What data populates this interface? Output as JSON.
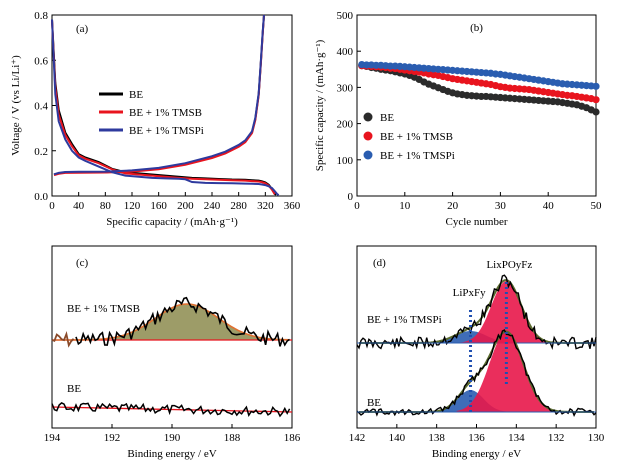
{
  "chart_data": [
    {
      "panel": "(a)",
      "type": "line",
      "xlabel": "Specific capacity / (mAh·g⁻¹)",
      "ylabel": "Voltage / V (vs Li/Li⁺)",
      "xlim": [
        0,
        360
      ],
      "ylim": [
        0,
        0.8
      ],
      "xticks": [
        0,
        40,
        80,
        120,
        160,
        200,
        240,
        280,
        320,
        360
      ],
      "yticks": [
        0.0,
        0.2,
        0.4,
        0.6,
        0.8
      ],
      "legend_position": "center-left",
      "series": [
        {
          "name": "BE",
          "color": "#000000",
          "discharge": {
            "x": [
              0,
              5,
              10,
              20,
              30,
              40,
              50,
              70,
              90,
              110,
              130,
              150,
              170,
              190,
              210,
              230,
              250,
              270,
              290,
              300,
              310,
              315,
              320,
              325,
              330,
              332,
              334,
              336
            ],
            "y": [
              0.78,
              0.5,
              0.38,
              0.28,
              0.23,
              0.185,
              0.17,
              0.15,
              0.12,
              0.105,
              0.1,
              0.095,
              0.09,
              0.085,
              0.08,
              0.078,
              0.075,
              0.073,
              0.072,
              0.07,
              0.068,
              0.065,
              0.06,
              0.05,
              0.03,
              0.02,
              0.01,
              0.005
            ]
          },
          "charge": {
            "x": [
              3,
              10,
              20,
              40,
              80,
              120,
              160,
              200,
              240,
              260,
              280,
              290,
              300,
              305,
              310,
              313,
              316,
              318
            ],
            "y": [
              0.095,
              0.1,
              0.105,
              0.105,
              0.105,
              0.11,
              0.12,
              0.14,
              0.17,
              0.19,
              0.22,
              0.24,
              0.28,
              0.34,
              0.45,
              0.58,
              0.72,
              0.8
            ]
          }
        },
        {
          "name": "BE + 1% TMSB",
          "color": "#e8141e",
          "discharge": {
            "x": [
              0,
              5,
              10,
              20,
              30,
              40,
              50,
              70,
              90,
              110,
              130,
              150,
              170,
              190,
              210,
              230,
              250,
              270,
              290,
              300,
              310,
              315,
              320,
              325,
              330,
              332,
              334
            ],
            "y": [
              0.78,
              0.48,
              0.36,
              0.27,
              0.22,
              0.18,
              0.165,
              0.145,
              0.118,
              0.1,
              0.095,
              0.09,
              0.085,
              0.08,
              0.076,
              0.074,
              0.072,
              0.07,
              0.068,
              0.066,
              0.064,
              0.061,
              0.056,
              0.046,
              0.028,
              0.018,
              0.008
            ]
          },
          "charge": {
            "x": [
              3,
              10,
              20,
              40,
              80,
              120,
              160,
              200,
              240,
              260,
              280,
              290,
              300,
              305,
              310,
              313,
              316,
              318
            ],
            "y": [
              0.092,
              0.098,
              0.102,
              0.103,
              0.104,
              0.108,
              0.118,
              0.138,
              0.168,
              0.188,
              0.218,
              0.238,
              0.278,
              0.335,
              0.445,
              0.575,
              0.715,
              0.8
            ]
          }
        },
        {
          "name": "BE + 1% TMSPi",
          "color": "#2e3a9e",
          "discharge": {
            "x": [
              0,
              5,
              10,
              20,
              30,
              40,
              50,
              70,
              90,
              110,
              130,
              150,
              170,
              190,
              200,
              210,
              230,
              250,
              270,
              290,
              300,
              310,
              315,
              320,
              325,
              330,
              333,
              336,
              338,
              340
            ],
            "y": [
              0.78,
              0.45,
              0.33,
              0.25,
              0.2,
              0.17,
              0.155,
              0.13,
              0.105,
              0.09,
              0.085,
              0.08,
              0.078,
              0.076,
              0.074,
              0.062,
              0.058,
              0.057,
              0.056,
              0.055,
              0.054,
              0.053,
              0.051,
              0.048,
              0.043,
              0.035,
              0.025,
              0.015,
              0.008,
              0.004
            ]
          },
          "charge": {
            "x": [
              3,
              10,
              20,
              40,
              80,
              120,
              160,
              200,
              240,
              260,
              280,
              290,
              300,
              305,
              310,
              313,
              316,
              318
            ],
            "y": [
              0.096,
              0.102,
              0.106,
              0.107,
              0.108,
              0.113,
              0.124,
              0.145,
              0.176,
              0.196,
              0.226,
              0.246,
              0.286,
              0.345,
              0.455,
              0.585,
              0.725,
              0.8
            ]
          }
        }
      ]
    },
    {
      "panel": "(b)",
      "type": "scatter",
      "xlabel": "Cycle number",
      "ylabel": "Specific capacity / (mAh·g⁻¹)",
      "xlim": [
        0,
        50
      ],
      "ylim": [
        0,
        500
      ],
      "xticks": [
        0,
        10,
        20,
        30,
        40,
        50
      ],
      "yticks": [
        0,
        100,
        200,
        300,
        400,
        500
      ],
      "legend_position": "lower-left",
      "series": [
        {
          "name": "BE",
          "color": "#2b2b2b",
          "x": [
            1,
            2,
            3,
            4,
            5,
            6,
            7,
            8,
            9,
            10,
            11,
            12,
            13,
            14,
            15,
            16,
            17,
            18,
            19,
            20,
            21,
            22,
            23,
            24,
            25,
            26,
            27,
            28,
            29,
            30,
            31,
            32,
            33,
            34,
            35,
            36,
            37,
            38,
            39,
            40,
            41,
            42,
            43,
            44,
            45,
            46,
            47,
            48,
            49,
            50
          ],
          "y": [
            360,
            358,
            355,
            353,
            350,
            348,
            346,
            343,
            340,
            337,
            333,
            328,
            322,
            315,
            309,
            304,
            299,
            294,
            289,
            285,
            282,
            280,
            278,
            277,
            276,
            275,
            275,
            274,
            273,
            272,
            271,
            270,
            269,
            268,
            267,
            266,
            265,
            264,
            263,
            262,
            261,
            260,
            258,
            256,
            254,
            252,
            248,
            244,
            238,
            232
          ]
        },
        {
          "name": "BE + 1% TMSB",
          "color": "#e8141e",
          "x": [
            1,
            2,
            3,
            4,
            5,
            6,
            7,
            8,
            9,
            10,
            11,
            12,
            13,
            14,
            15,
            16,
            17,
            18,
            19,
            20,
            21,
            22,
            23,
            24,
            25,
            26,
            27,
            28,
            29,
            30,
            31,
            32,
            33,
            34,
            35,
            36,
            37,
            38,
            39,
            40,
            41,
            42,
            43,
            44,
            45,
            46,
            47,
            48,
            49,
            50
          ],
          "y": [
            360,
            359,
            358,
            357,
            356,
            355,
            353,
            352,
            350,
            348,
            346,
            344,
            342,
            340,
            337,
            335,
            333,
            330,
            327,
            324,
            322,
            320,
            318,
            316,
            314,
            312,
            310,
            308,
            305,
            302,
            300,
            298,
            297,
            296,
            295,
            294,
            292,
            290,
            288,
            286,
            284,
            282,
            280,
            278,
            277,
            275,
            273,
            271,
            269,
            266
          ]
        },
        {
          "name": "BE + 1% TMSPi",
          "color": "#2a5db0",
          "x": [
            1,
            2,
            3,
            4,
            5,
            6,
            7,
            8,
            9,
            10,
            11,
            12,
            13,
            14,
            15,
            16,
            17,
            18,
            19,
            20,
            21,
            22,
            23,
            24,
            25,
            26,
            27,
            28,
            29,
            30,
            31,
            32,
            33,
            34,
            35,
            36,
            37,
            38,
            39,
            40,
            41,
            42,
            43,
            44,
            45,
            46,
            47,
            48,
            49,
            50
          ],
          "y": [
            363,
            362,
            362,
            361,
            361,
            360,
            359,
            359,
            358,
            357,
            356,
            355,
            354,
            353,
            352,
            351,
            350,
            349,
            348,
            347,
            346,
            345,
            344,
            343,
            342,
            341,
            340,
            339,
            337,
            336,
            334,
            332,
            330,
            328,
            326,
            324,
            322,
            320,
            318,
            316,
            314,
            312,
            310,
            309,
            308,
            307,
            306,
            305,
            304,
            303
          ]
        }
      ]
    },
    {
      "panel": "(c)",
      "type": "line",
      "xlabel": "Binding energy / eV",
      "xlim": [
        194,
        186
      ],
      "xticks": [
        194,
        192,
        190,
        188,
        186
      ],
      "labels": [
        "BE + 1% TMSB",
        "BE"
      ],
      "peak_fill": "#8c8b4e",
      "fit_color": "#e8141e",
      "envelope_color": "#e07030"
    },
    {
      "panel": "(d)",
      "type": "line",
      "xlabel": "Binding energy / eV",
      "xlim": [
        142,
        130
      ],
      "xticks": [
        142,
        140,
        138,
        136,
        134,
        132,
        130
      ],
      "labels": [
        "BE + 1% TMSPi",
        "BE"
      ],
      "peak_labels": {
        "lipf": "LiPxFy",
        "lipof": "LixPOyFz"
      },
      "peak_colors": {
        "lipf": "#2a5db0",
        "lipof": "#e8174a"
      },
      "dotted_positions_eV": [
        136.3,
        134.5
      ]
    }
  ]
}
